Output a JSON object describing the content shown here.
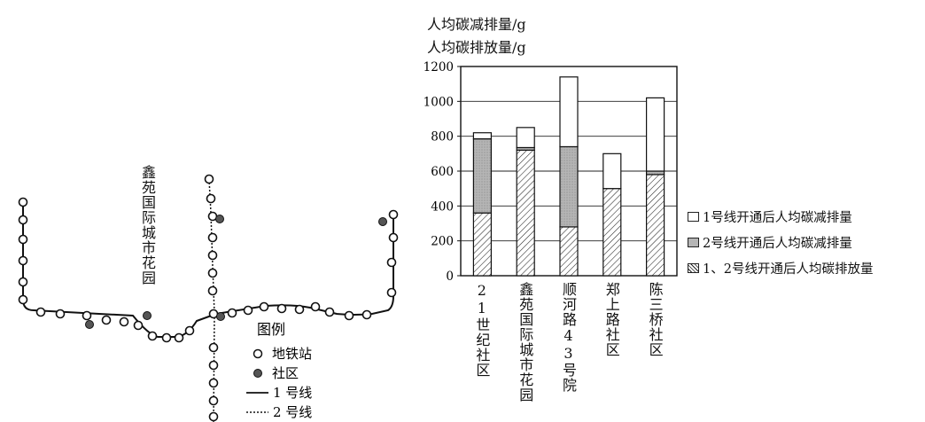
{
  "chart_data": {
    "type": "bar",
    "stacked": true,
    "ylabel_lines": [
      "人均碳减排量/g",
      "人均碳排放量/g"
    ],
    "ylim": [
      0,
      1200
    ],
    "yticks": [
      0,
      200,
      400,
      600,
      800,
      1000,
      1200
    ],
    "grid": true,
    "categories": [
      "21世纪社区",
      "鑫苑国际城市花园",
      "顺河路43号院",
      "郑上路社区",
      "陈三桥社区"
    ],
    "series": [
      {
        "name": "1、2号线开通后人均碳排放量",
        "pattern": "hatch",
        "values": [
          360,
          720,
          280,
          500,
          580
        ]
      },
      {
        "name": "2号线开通后人均碳减排量",
        "pattern": "gray",
        "values": [
          425,
          15,
          460,
          0,
          20
        ]
      },
      {
        "name": "1号线开通后人均碳减排量",
        "pattern": "white",
        "values": [
          35,
          115,
          400,
          200,
          420
        ]
      }
    ],
    "legend_position": "right"
  },
  "map": {
    "community_label": "鑫苑国际城市花园",
    "legend_title": "图例",
    "legend_items": [
      "地铁站",
      "社区",
      "1 号线",
      "2 号线"
    ]
  },
  "colors": {
    "gray_fill": "#b8b8b8",
    "ink": "#111111"
  }
}
